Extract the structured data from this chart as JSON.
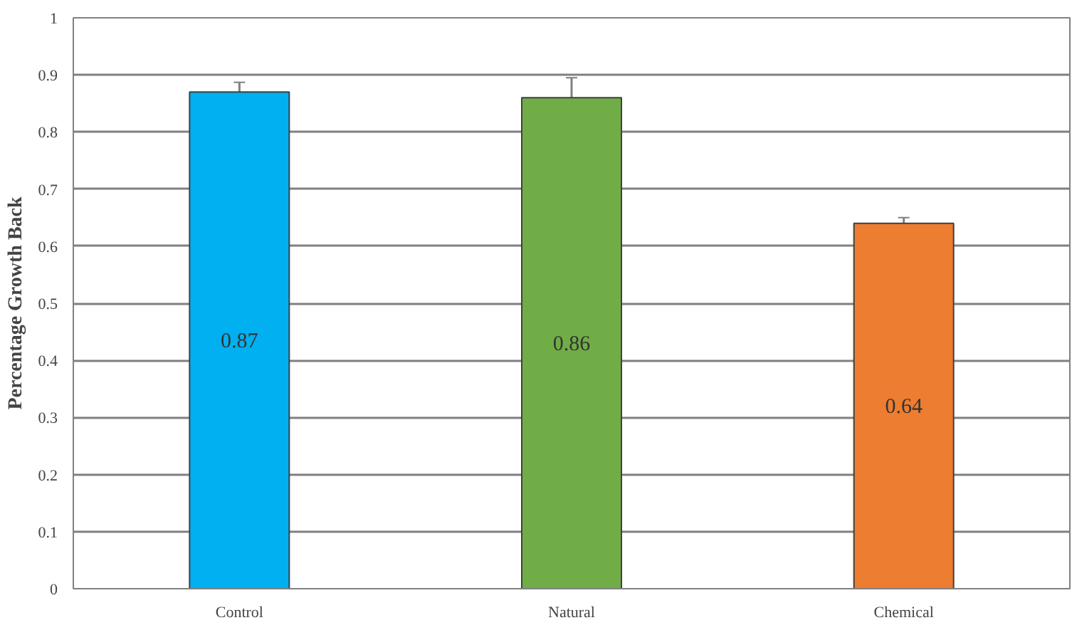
{
  "chart_data": {
    "type": "bar",
    "ylabel": "Percentage Growth Back",
    "categories": [
      "Control",
      "Natural",
      "Chemical"
    ],
    "values": [
      0.87,
      0.86,
      0.64
    ],
    "colors": [
      "#00b0f0",
      "#70ad47",
      "#ed7d31"
    ],
    "errors": [
      0.017,
      0.035,
      0.01
    ],
    "data_labels": true,
    "ylim": [
      0,
      1
    ],
    "yticks": [
      0,
      0.1,
      0.2,
      0.3,
      0.4,
      0.5,
      0.6,
      0.7,
      0.8,
      0.9,
      1
    ],
    "grid": "y"
  }
}
